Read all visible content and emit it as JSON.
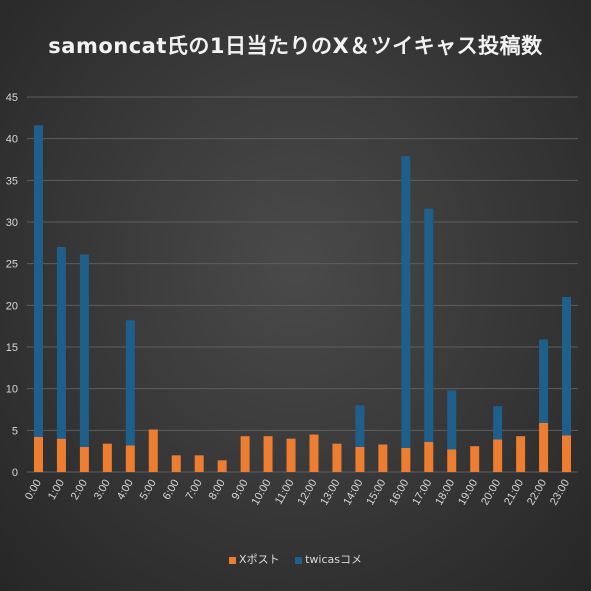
{
  "chart_data": {
    "type": "bar",
    "stacked": true,
    "title": "samoncat氏の1日当たりのX＆ツイキャス投稿数",
    "xlabel": "",
    "ylabel": "",
    "ylim": [
      0,
      45
    ],
    "yticks": [
      0,
      5,
      10,
      15,
      20,
      25,
      30,
      35,
      40,
      45
    ],
    "grid": true,
    "legend_position": "bottom",
    "categories": [
      "0:00",
      "1:00",
      "2:00",
      "3:00",
      "4:00",
      "5:00",
      "6:00",
      "7:00",
      "8:00",
      "9:00",
      "10:00",
      "11:00",
      "12:00",
      "13:00",
      "14:00",
      "15:00",
      "16:00",
      "17:00",
      "18:00",
      "19:00",
      "20:00",
      "21:00",
      "22:00",
      "23:00"
    ],
    "series": [
      {
        "name": "Xポスト",
        "color": "#ed7d31",
        "values": [
          4.2,
          4.0,
          3.0,
          3.4,
          3.2,
          5.1,
          2.0,
          2.0,
          1.4,
          4.3,
          4.3,
          4.0,
          4.5,
          3.4,
          3.0,
          3.3,
          2.9,
          3.6,
          2.7,
          3.1,
          3.9,
          4.3,
          5.9,
          4.4
        ]
      },
      {
        "name": "twicasコメ",
        "color": "#1f5f8b",
        "values": [
          37.4,
          23.0,
          23.1,
          0,
          15.0,
          0,
          0,
          0,
          0,
          0,
          0,
          0,
          0,
          0,
          5.0,
          0,
          35.0,
          28.0,
          7.1,
          0,
          4.0,
          0,
          10.0,
          16.6
        ]
      }
    ]
  }
}
